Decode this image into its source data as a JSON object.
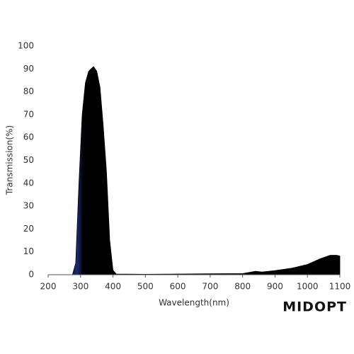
{
  "chart_data": {
    "type": "area",
    "xlabel": "Wavelength(nm)",
    "ylabel": "Transmission(%)",
    "x": [
      200,
      275,
      285,
      295,
      305,
      315,
      325,
      340,
      350,
      360,
      370,
      380,
      390,
      400,
      410,
      500,
      600,
      700,
      800,
      820,
      840,
      860,
      880,
      900,
      950,
      1000,
      1040,
      1070,
      1090,
      1100
    ],
    "values": [
      0,
      0,
      5,
      40,
      70,
      84,
      89,
      91,
      89,
      82,
      65,
      45,
      15,
      2,
      0.3,
      0.2,
      0.3,
      0.4,
      0.5,
      1,
      1.5,
      1.2,
      1.5,
      1.8,
      2.8,
      4.5,
      7,
      8.5,
      8.5,
      8.2
    ],
    "color": "#1c2a72",
    "xlim": [
      200,
      1100
    ],
    "ylim": [
      0,
      100
    ],
    "xticks": [
      200,
      300,
      400,
      500,
      600,
      700,
      800,
      900,
      1000,
      1100
    ],
    "yticks": [
      0,
      10,
      20,
      30,
      40,
      50,
      60,
      70,
      80,
      90,
      100
    ],
    "brand": "MIDOPT"
  }
}
